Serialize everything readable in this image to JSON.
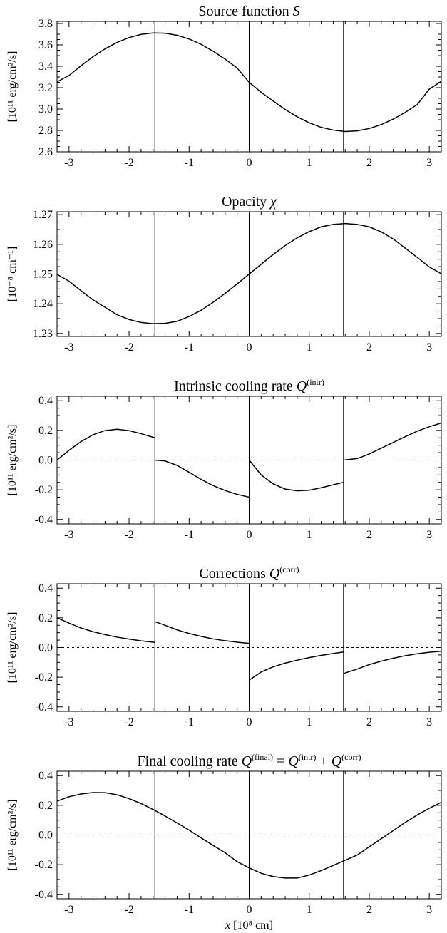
{
  "chart_data": [
    {
      "type": "line",
      "title": "Source function S",
      "title_main": "Source function ",
      "title_symbol": "S",
      "ylabel": "[10¹¹ erg/cm²/s]",
      "xlim": [
        -3.2,
        3.2
      ],
      "ylim": [
        2.6,
        3.82
      ],
      "xticks": [
        -3,
        -2,
        -1,
        0,
        1,
        2,
        3
      ],
      "yticks": [
        2.6,
        2.8,
        3.0,
        3.2,
        3.4,
        3.6,
        3.8
      ],
      "ytick_labels": [
        "2.6",
        "2.8",
        "3.0",
        "3.2",
        "3.4",
        "3.6",
        "3.8"
      ],
      "vlines": [
        -1.5708,
        0,
        1.5708
      ],
      "zero_line": false,
      "show_xlabel": false,
      "series": [
        {
          "x": [
            -3.2,
            -3.0,
            -2.8,
            -2.6,
            -2.4,
            -2.2,
            -2.0,
            -1.8,
            -1.6,
            -1.4,
            -1.2,
            -1.0,
            -0.8,
            -0.6,
            -0.4,
            -0.2,
            0.0,
            0.2,
            0.4,
            0.6,
            0.8,
            1.0,
            1.2,
            1.4,
            1.6,
            1.8,
            2.0,
            2.2,
            2.4,
            2.6,
            2.8,
            3.0,
            3.2
          ],
          "y": [
            3.254,
            3.314,
            3.405,
            3.49,
            3.563,
            3.623,
            3.668,
            3.698,
            3.712,
            3.709,
            3.69,
            3.655,
            3.605,
            3.541,
            3.467,
            3.383,
            3.25,
            3.157,
            3.075,
            2.996,
            2.927,
            2.871,
            2.829,
            2.803,
            2.79,
            2.796,
            2.818,
            2.855,
            2.906,
            2.969,
            3.042,
            3.186,
            3.26
          ]
        }
      ]
    },
    {
      "type": "line",
      "title": "Opacity χ",
      "title_main": "Opacity ",
      "title_symbol": "χ",
      "ylabel": "[10⁻⁸ cm⁻¹]",
      "xlim": [
        -3.2,
        3.2
      ],
      "ylim": [
        1.229,
        1.271
      ],
      "xticks": [
        -3,
        -2,
        -1,
        0,
        1,
        2,
        3
      ],
      "yticks": [
        1.23,
        1.24,
        1.25,
        1.26,
        1.27
      ],
      "ytick_labels": [
        "1.23",
        "1.24",
        "1.25",
        "1.26",
        "1.27"
      ],
      "vlines": [
        -1.5708,
        0,
        1.5708
      ],
      "zero_line": false,
      "show_xlabel": false,
      "series": [
        {
          "x": [
            -3.2,
            -3.0,
            -2.8,
            -2.6,
            -2.4,
            -2.2,
            -2.0,
            -1.8,
            -1.6,
            -1.4,
            -1.2,
            -1.0,
            -0.8,
            -0.6,
            -0.4,
            -0.2,
            0.0,
            0.2,
            0.4,
            0.6,
            0.8,
            1.0,
            1.2,
            1.4,
            1.6,
            1.8,
            2.0,
            2.2,
            2.4,
            2.6,
            2.8,
            3.0,
            3.2
          ],
          "y": [
            1.2499,
            1.2476,
            1.2444,
            1.2413,
            1.2388,
            1.2363,
            1.2347,
            1.2337,
            1.2333,
            1.2334,
            1.2341,
            1.2357,
            1.2378,
            1.2405,
            1.2435,
            1.2467,
            1.25,
            1.2533,
            1.2566,
            1.2596,
            1.2622,
            1.2643,
            1.2659,
            1.2667,
            1.267,
            1.2667,
            1.2659,
            1.2642,
            1.2618,
            1.2587,
            1.2556,
            1.2524,
            1.2501
          ]
        }
      ]
    },
    {
      "type": "line",
      "title": "Intrinsic cooling rate Q(intr)",
      "title_main": "Intrinsic cooling rate ",
      "title_symbol": "Q",
      "title_sup": "(intr)",
      "ylabel": "[10¹¹ erg/cm²/s]",
      "xlim": [
        -3.2,
        3.2
      ],
      "ylim": [
        -0.43,
        0.43
      ],
      "xticks": [
        -3,
        -2,
        -1,
        0,
        1,
        2,
        3
      ],
      "yticks": [
        -0.4,
        -0.2,
        0.0,
        0.2,
        0.4
      ],
      "ytick_labels": [
        "-0.4",
        "-0.2",
        "0.0",
        "0.2",
        "0.4"
      ],
      "vlines": [
        -1.5708,
        0,
        1.5708
      ],
      "zero_line": true,
      "show_xlabel": false,
      "series": [
        {
          "x": [
            -3.2,
            -3.0,
            -2.8,
            -2.6,
            -2.4,
            -2.2,
            -2.0,
            -1.8,
            -1.5708
          ],
          "y": [
            0.0,
            0.066,
            0.125,
            0.171,
            0.199,
            0.208,
            0.198,
            0.178,
            0.15
          ]
        },
        {
          "x": [
            -1.5708,
            -1.4,
            -1.2,
            -1.0,
            -0.8,
            -0.6,
            -0.4,
            -0.2,
            0.0
          ],
          "y": [
            0.0,
            -0.006,
            -0.036,
            -0.082,
            -0.13,
            -0.172,
            -0.205,
            -0.231,
            -0.25
          ]
        },
        {
          "x": [
            0.0,
            0.2,
            0.4,
            0.6,
            0.8,
            1.0,
            1.2,
            1.4,
            1.5708
          ],
          "y": [
            0.0,
            -0.1,
            -0.16,
            -0.195,
            -0.207,
            -0.203,
            -0.186,
            -0.166,
            -0.15
          ]
        },
        {
          "x": [
            1.5708,
            1.8,
            2.0,
            2.2,
            2.4,
            2.6,
            2.8,
            3.0,
            3.2
          ],
          "y": [
            0.0,
            0.01,
            0.041,
            0.08,
            0.119,
            0.158,
            0.195,
            0.225,
            0.25
          ]
        }
      ]
    },
    {
      "type": "line",
      "title": "Corrections Q(corr)",
      "title_main": "Corrections ",
      "title_symbol": "Q",
      "title_sup": "(corr)",
      "ylabel": "[10¹¹ erg/cm²/s]",
      "xlim": [
        -3.2,
        3.2
      ],
      "ylim": [
        -0.43,
        0.43
      ],
      "xticks": [
        -3,
        -2,
        -1,
        0,
        1,
        2,
        3
      ],
      "yticks": [
        -0.4,
        -0.2,
        0.0,
        0.2,
        0.4
      ],
      "ytick_labels": [
        "-0.4",
        "-0.2",
        "0.0",
        "0.2",
        "0.4"
      ],
      "vlines": [
        -1.5708,
        0,
        1.5708
      ],
      "zero_line": true,
      "show_xlabel": false,
      "series": [
        {
          "x": [
            -3.2,
            -3.0,
            -2.8,
            -2.6,
            -2.4,
            -2.2,
            -2.0,
            -1.8,
            -1.5708
          ],
          "y": [
            0.2,
            0.165,
            0.132,
            0.107,
            0.087,
            0.07,
            0.057,
            0.045,
            0.035
          ]
        },
        {
          "x": [
            -1.5708,
            -1.4,
            -1.2,
            -1.0,
            -0.8,
            -0.6,
            -0.4,
            -0.2,
            0.0
          ],
          "y": [
            0.175,
            0.15,
            0.119,
            0.095,
            0.075,
            0.058,
            0.046,
            0.036,
            0.028
          ]
        },
        {
          "x": [
            0.0,
            0.2,
            0.4,
            0.6,
            0.8,
            1.0,
            1.2,
            1.4,
            1.5708
          ],
          "y": [
            -0.22,
            -0.165,
            -0.13,
            -0.105,
            -0.085,
            -0.068,
            -0.053,
            -0.04,
            -0.03
          ]
        },
        {
          "x": [
            1.5708,
            1.8,
            2.0,
            2.2,
            2.4,
            2.6,
            2.8,
            3.0,
            3.2
          ],
          "y": [
            -0.175,
            -0.145,
            -0.115,
            -0.092,
            -0.072,
            -0.055,
            -0.042,
            -0.032,
            -0.025
          ]
        }
      ]
    },
    {
      "type": "line",
      "title": "Final cooling rate Q(final) = Q(intr) + Q(corr)",
      "title_main": "Final cooling rate ",
      "title_symbol": "Q",
      "title_sup": "(final)",
      "title_rest": [
        {
          "t": " = "
        },
        {
          "sym": "Q"
        },
        {
          "sup": "(intr)"
        },
        {
          "t": " + "
        },
        {
          "sym": "Q"
        },
        {
          "sup": "(corr)"
        }
      ],
      "xlabel": "x [10⁸ cm]",
      "ylabel": "[10¹¹ erg/cm²/s]",
      "xlim": [
        -3.2,
        3.2
      ],
      "ylim": [
        -0.43,
        0.43
      ],
      "xticks": [
        -3,
        -2,
        -1,
        0,
        1,
        2,
        3
      ],
      "yticks": [
        -0.4,
        -0.2,
        0.0,
        0.2,
        0.4
      ],
      "ytick_labels": [
        "-0.4",
        "-0.2",
        "0.0",
        "0.2",
        "0.4"
      ],
      "vlines": [
        -1.5708,
        0,
        1.5708
      ],
      "zero_line": true,
      "show_xlabel": true,
      "series": [
        {
          "x": [
            -3.2,
            -3.0,
            -2.8,
            -2.6,
            -2.4,
            -2.2,
            -2.0,
            -1.8,
            -1.6,
            -1.4,
            -1.2,
            -1.0,
            -0.8,
            -0.6,
            -0.4,
            -0.2,
            0.0,
            0.2,
            0.4,
            0.6,
            0.8,
            1.0,
            1.2,
            1.4,
            1.6,
            1.8,
            2.0,
            2.2,
            2.4,
            2.6,
            2.8,
            3.0,
            3.2
          ],
          "y": [
            0.228,
            0.258,
            0.276,
            0.286,
            0.285,
            0.271,
            0.245,
            0.212,
            0.172,
            0.128,
            0.081,
            0.033,
            -0.02,
            -0.07,
            -0.12,
            -0.18,
            -0.222,
            -0.258,
            -0.28,
            -0.29,
            -0.29,
            -0.27,
            -0.24,
            -0.205,
            -0.17,
            -0.135,
            -0.08,
            -0.025,
            0.03,
            0.085,
            0.135,
            0.18,
            0.22
          ]
        }
      ]
    }
  ]
}
